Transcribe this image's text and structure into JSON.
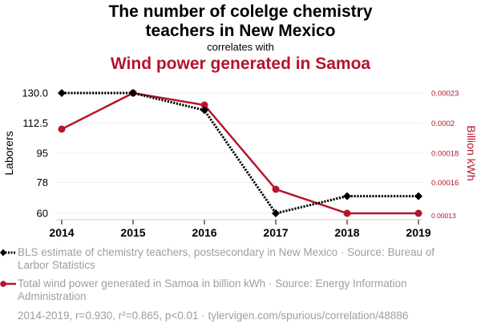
{
  "header": {
    "title_line1": "The number of colelge chemistry",
    "title_line2": "teachers in New Mexico",
    "connector": "correlates with",
    "title2": "Wind power generated in Samoa"
  },
  "colors": {
    "series1": "#000000",
    "series2": "#b5152b",
    "grid": "#eeeeee",
    "muted": "#9e9e9e"
  },
  "chart_data": {
    "type": "line",
    "x": [
      "2014",
      "2015",
      "2016",
      "2017",
      "2018",
      "2019"
    ],
    "series": [
      {
        "name": "BLS estimate of chemistry teachers, postsecondary in New Mexico",
        "axis": "left",
        "style": "dotted-diamond",
        "values": [
          130,
          130,
          120,
          60,
          70,
          70
        ]
      },
      {
        "name": "Total wind power generated in Samoa in billion kWh",
        "axis": "right",
        "style": "solid-circle",
        "values": [
          0.0002,
          0.00023,
          0.00022,
          0.00015,
          0.00013,
          0.00013
        ]
      }
    ],
    "left_axis": {
      "label": "Laborers",
      "range": [
        60,
        130
      ],
      "ticks": [
        130,
        112.5,
        95,
        78,
        60
      ],
      "tick_labels": [
        "130.0",
        "112.5",
        "95",
        "78",
        "60"
      ]
    },
    "right_axis": {
      "label": "Billion kWh",
      "range": [
        0.00013,
        0.00023
      ],
      "tick_labels": [
        "0.00023",
        "0.0002",
        "0.00018",
        "0.00016",
        "0.00013"
      ]
    },
    "grid": true
  },
  "legend": {
    "series1": "BLS estimate of chemistry teachers, postsecondary in New Mexico · Source: Bureau of Larbor Statistics",
    "series2": "Total wind power generated in Samoa in billion kWh · Source: Energy Information Administration"
  },
  "footer": "2014-2019, r=0.930, r²=0.865, p<0.01 · tylervigen.com/spurious/correlation/48886"
}
